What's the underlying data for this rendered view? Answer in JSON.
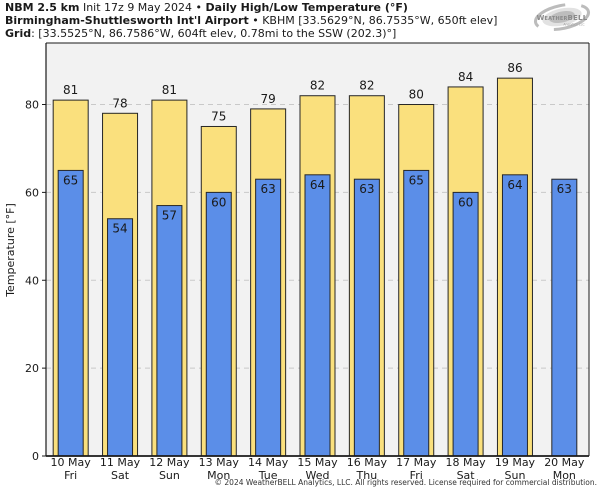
{
  "header": {
    "line1_bold": "NBM 2.5 km",
    "line1_regular": " Init 17z 9 May 2024 • ",
    "line1_bold2": "Daily High/Low Temperature (°F)",
    "line2_bold": "Birmingham-Shuttlesworth Int'l Airport",
    "line2_regular": " • KBHM [33.5629°N, 86.7535°W, 650ft elev]",
    "line3_bold": "Grid",
    "line3_regular": ": [33.5525°N, 86.7586°W, 604ft elev, 0.78mi to the SSW (202.3)°]"
  },
  "logo": {
    "text": "WeatherBELL",
    "subtext": "Analytics LLC"
  },
  "footer": {
    "copyright": "© 2024 WeatherBELL Analytics, LLC. All rights reserved. License required for commercial distribution."
  },
  "colors": {
    "high_bar": "#FAE07D",
    "low_bar": "#5B8EE8",
    "bar_border": "#262626",
    "plot_background": "#F2F2F2",
    "gridline": "#C9C9C9",
    "axis": "#1a1a1a"
  },
  "chart_data": {
    "type": "bar",
    "title": "NBM 2.5 km Daily High/Low Temperature (°F) — Birmingham-Shuttlesworth Int'l Airport (KBHM)",
    "categories": [
      "10 May",
      "11 May",
      "12 May",
      "13 May",
      "14 May",
      "15 May",
      "16 May",
      "17 May",
      "18 May",
      "19 May",
      "20 May"
    ],
    "category_days": [
      "Fri",
      "Sat",
      "Sun",
      "Mon",
      "Tue",
      "Wed",
      "Thu",
      "Fri",
      "Sat",
      "Sun",
      "Mon"
    ],
    "series": [
      {
        "name": "High",
        "values": [
          81,
          78,
          81,
          75,
          79,
          82,
          82,
          80,
          84,
          86,
          null
        ]
      },
      {
        "name": "Low",
        "values": [
          65,
          54,
          57,
          60,
          63,
          64,
          63,
          65,
          60,
          64,
          63
        ]
      }
    ],
    "xlabel": "",
    "ylabel": "Temperature [°F]",
    "ylim": [
      0,
      94
    ],
    "yticks": [
      0,
      20,
      40,
      60,
      80
    ],
    "grid": "horizontal-dashed",
    "legend": "none"
  }
}
